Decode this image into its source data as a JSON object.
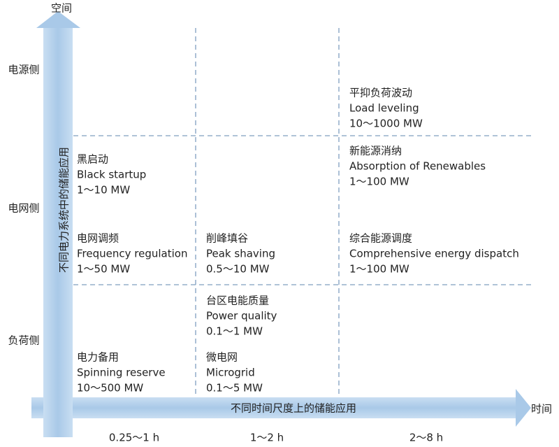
{
  "axes": {
    "y_label": "空间",
    "x_label": "时间",
    "y_caption": "不同电力系统中的储能应用",
    "x_caption": "不同时间尺度上的储能应用"
  },
  "rows": [
    "电源侧",
    "电网侧",
    "负荷侧"
  ],
  "columns": [
    "0.25～1 h",
    "1～2 h",
    "2～8 h"
  ],
  "cells": [
    {
      "zh": "平抑负荷波动",
      "en": "Load leveling",
      "range": "10～1000 MW"
    },
    {
      "zh": "黑启动",
      "en": "Black startup",
      "range": "1～10 MW"
    },
    {
      "zh": "新能源消纳",
      "en": "Absorption of Renewables",
      "range": "1～100 MW"
    },
    {
      "zh": "电网调频",
      "en": "Frequency regulation",
      "range": "1～50 MW"
    },
    {
      "zh": "削峰填谷",
      "en": "Peak shaving",
      "range": "0.5～10 MW"
    },
    {
      "zh": "综合能源调度",
      "en": "Comprehensive energy dispatch",
      "range": "1～100 MW"
    },
    {
      "zh": "台区电能质量",
      "en": "Power quality",
      "range": "0.1～1 MW"
    },
    {
      "zh": "电力备用",
      "en": "Spinning reserve",
      "range": "10～500 MW"
    },
    {
      "zh": "微电网",
      "en": "Microgrid",
      "range": "0.1～5 MW"
    }
  ]
}
